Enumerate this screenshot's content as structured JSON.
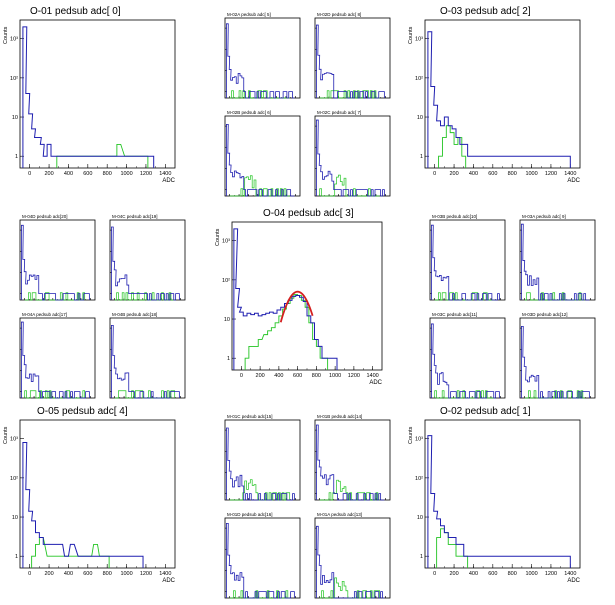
{
  "colors": {
    "blue": "#1f1fb0",
    "green": "#22c422",
    "red": "#d42020",
    "frame": "#000000"
  },
  "big_panels": [
    {
      "id": "O-01",
      "title": "O-01    pedsub adc[ 0]",
      "ylabel": "Counts",
      "xlabel": "ADC",
      "fit": false
    },
    {
      "id": "O-03",
      "title": "O-03    pedsub adc[ 2]",
      "ylabel": "Counts",
      "xlabel": "ADC",
      "fit": false
    },
    {
      "id": "O-04",
      "title": "O-04    pedsub adc[ 3]",
      "ylabel": "Counts",
      "xlabel": "ADC",
      "fit": true
    },
    {
      "id": "O-05",
      "title": "O-05    pedsub adc[ 4]",
      "ylabel": "Counts",
      "xlabel": "ADC",
      "fit": false
    },
    {
      "id": "O-02",
      "title": "O-02    pedsub adc[ 1]",
      "ylabel": "Counts",
      "xlabel": "ADC",
      "fit": false
    }
  ],
  "small_panels": [
    {
      "title": "M-02A     pedsub adc[ 5]"
    },
    {
      "title": "M-02D     pedsub adc[ 8]"
    },
    {
      "title": "M-02B     pedsub adc[ 6]"
    },
    {
      "title": "M-02C     pedsub adc[ 7]"
    },
    {
      "title": "M-04D     pedsub adc[20]"
    },
    {
      "title": "M-04C     pedsub adc[19]"
    },
    {
      "title": "M-04A     pedsub adc[17]"
    },
    {
      "title": "M-04B     pedsub adc[18]"
    },
    {
      "title": "M-03B     pedsub adc[10]"
    },
    {
      "title": "M-03A     pedsub adc[ 9]"
    },
    {
      "title": "M-03C     pedsub adc[11]"
    },
    {
      "title": "M-03D     pedsub adc[12]"
    },
    {
      "title": "M-01C     pedsub adc[15]"
    },
    {
      "title": "M-01B     pedsub adc[14]"
    },
    {
      "title": "M-01D     pedsub adc[16]"
    },
    {
      "title": "M-01A     pedsub adc[13]"
    }
  ],
  "chart_data": {
    "type": "line",
    "x_ticks": [
      0,
      200,
      400,
      600,
      800,
      1000,
      1200,
      1400
    ],
    "x_tick_labels": [
      "0",
      "200",
      "400",
      "600",
      "800",
      "1000",
      "1200",
      "1400"
    ],
    "y_ticks": [
      1,
      10,
      100,
      1000
    ],
    "y_tick_labels": [
      "1",
      "10",
      "10²",
      "10³"
    ],
    "xlim": [
      -100,
      1500
    ],
    "ylim": [
      0.5,
      3000
    ],
    "y_scale": "log",
    "xlabel": "ADC",
    "ylabel": "Counts",
    "series_colors": {
      "blue": "#1f1fb0",
      "green": "#22c422"
    },
    "fit_curve": {
      "color": "#d42020",
      "mean": 600,
      "sigma": 95,
      "amplitude": 50
    },
    "histograms": {
      "O-01": {
        "blue": [
          [
            -50,
            2000
          ],
          [
            -20,
            40
          ],
          [
            10,
            12
          ],
          [
            40,
            5
          ],
          [
            70,
            3
          ],
          [
            100,
            3
          ],
          [
            130,
            2
          ],
          [
            160,
            1
          ],
          [
            200,
            2
          ],
          [
            240,
            1
          ],
          [
            300,
            1
          ],
          [
            340,
            1
          ],
          [
            400,
            1
          ],
          [
            460,
            1
          ],
          [
            520,
            1
          ],
          [
            600,
            1
          ],
          [
            700,
            1
          ],
          [
            800,
            1
          ],
          [
            880,
            1
          ],
          [
            940,
            1
          ],
          [
            1000,
            1
          ],
          [
            1100,
            1
          ],
          [
            1180,
            1
          ],
          [
            1260,
            1
          ]
        ],
        "green": [
          [
            300,
            1
          ],
          [
            500,
            1
          ],
          [
            620,
            1
          ],
          [
            880,
            1
          ],
          [
            920,
            2
          ],
          [
            1000,
            1
          ],
          [
            1100,
            1
          ],
          [
            1200,
            1
          ]
        ]
      },
      "O-03": {
        "blue": [
          [
            -50,
            1500
          ],
          [
            -20,
            60
          ],
          [
            10,
            20
          ],
          [
            40,
            8
          ],
          [
            80,
            6
          ],
          [
            120,
            10
          ],
          [
            160,
            6
          ],
          [
            200,
            5
          ],
          [
            240,
            3
          ],
          [
            280,
            2
          ],
          [
            320,
            2
          ],
          [
            360,
            1
          ],
          [
            420,
            1
          ],
          [
            480,
            1
          ],
          [
            560,
            1
          ],
          [
            620,
            1
          ],
          [
            700,
            1
          ],
          [
            1380,
            1
          ]
        ],
        "green": [
          [
            60,
            1
          ],
          [
            100,
            3
          ],
          [
            140,
            6
          ],
          [
            180,
            4
          ],
          [
            220,
            2
          ],
          [
            260,
            3
          ],
          [
            300,
            1
          ]
        ]
      },
      "O-04": {
        "blue": [
          [
            -60,
            2000
          ],
          [
            -40,
            60
          ],
          [
            -20,
            20
          ],
          [
            0,
            15
          ],
          [
            40,
            12
          ],
          [
            80,
            14
          ],
          [
            120,
            13
          ],
          [
            160,
            14
          ],
          [
            200,
            12
          ],
          [
            240,
            13
          ],
          [
            280,
            14
          ],
          [
            320,
            15
          ],
          [
            360,
            14
          ],
          [
            400,
            17
          ],
          [
            440,
            20
          ],
          [
            480,
            25
          ],
          [
            520,
            30
          ],
          [
            560,
            38
          ],
          [
            600,
            40
          ],
          [
            640,
            36
          ],
          [
            680,
            28
          ],
          [
            720,
            12
          ],
          [
            760,
            8
          ],
          [
            800,
            3
          ],
          [
            840,
            2
          ],
          [
            880,
            1
          ],
          [
            940,
            1
          ],
          [
            1000,
            1
          ]
        ],
        "green": [
          [
            60,
            1
          ],
          [
            100,
            2
          ],
          [
            160,
            2
          ],
          [
            200,
            3
          ],
          [
            260,
            4
          ],
          [
            300,
            5
          ],
          [
            340,
            6
          ],
          [
            380,
            8
          ],
          [
            420,
            12
          ],
          [
            460,
            18
          ],
          [
            500,
            25
          ],
          [
            540,
            34
          ],
          [
            580,
            42
          ],
          [
            620,
            40
          ],
          [
            660,
            30
          ],
          [
            700,
            20
          ],
          [
            740,
            8
          ],
          [
            780,
            3
          ],
          [
            820,
            2
          ],
          [
            860,
            1
          ],
          [
            900,
            1
          ]
        ]
      },
      "O-05": {
        "blue": [
          [
            -50,
            800
          ],
          [
            -20,
            50
          ],
          [
            10,
            14
          ],
          [
            40,
            8
          ],
          [
            80,
            4
          ],
          [
            120,
            3
          ],
          [
            160,
            2
          ],
          [
            200,
            2
          ],
          [
            260,
            2
          ],
          [
            320,
            2
          ],
          [
            380,
            1
          ],
          [
            440,
            2
          ],
          [
            520,
            1
          ],
          [
            600,
            1
          ],
          [
            700,
            1
          ],
          [
            800,
            1
          ],
          [
            900,
            1
          ],
          [
            1000,
            1
          ],
          [
            1150,
            1
          ]
        ],
        "green": [
          [
            40,
            1
          ],
          [
            80,
            2
          ],
          [
            120,
            3
          ],
          [
            200,
            1
          ],
          [
            260,
            1
          ],
          [
            300,
            1
          ],
          [
            360,
            1
          ],
          [
            420,
            1
          ],
          [
            500,
            1
          ],
          [
            560,
            1
          ],
          [
            620,
            1
          ],
          [
            680,
            2
          ],
          [
            740,
            1
          ],
          [
            800,
            1
          ]
        ]
      },
      "O-02": {
        "blue": [
          [
            -50,
            1200
          ],
          [
            -20,
            40
          ],
          [
            10,
            14
          ],
          [
            40,
            9
          ],
          [
            80,
            6
          ],
          [
            120,
            4
          ],
          [
            160,
            3
          ],
          [
            200,
            3
          ],
          [
            240,
            2
          ],
          [
            280,
            2
          ],
          [
            320,
            1
          ],
          [
            380,
            1
          ],
          [
            440,
            1
          ],
          [
            500,
            1
          ],
          [
            600,
            1
          ],
          [
            700,
            1
          ],
          [
            1380,
            1
          ]
        ],
        "green": [
          [
            40,
            3
          ],
          [
            80,
            5
          ],
          [
            120,
            4
          ],
          [
            160,
            2
          ],
          [
            200,
            2
          ],
          [
            240,
            1
          ],
          [
            280,
            1
          ],
          [
            320,
            1
          ]
        ]
      }
    }
  }
}
